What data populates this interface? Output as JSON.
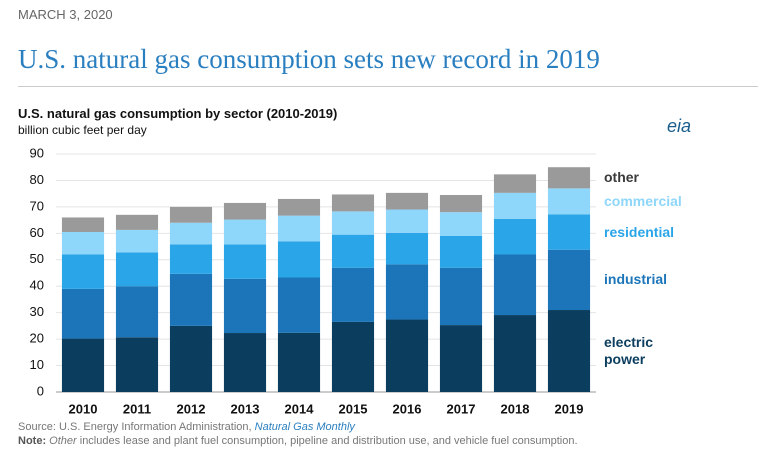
{
  "page": {
    "date": "MARCH 3, 2020",
    "headline": "U.S. natural gas consumption sets new record in 2019",
    "logo": "eia"
  },
  "chart_data": {
    "type": "stacked_bar",
    "title": "U.S. natural gas consumption by sector (2010-2019)",
    "subtitle": "billion cubic feet per day",
    "categories": [
      "2010",
      "2011",
      "2012",
      "2013",
      "2014",
      "2015",
      "2016",
      "2017",
      "2018",
      "2019"
    ],
    "series": [
      {
        "name": "electric power",
        "color": "#0b3d5e",
        "values": [
          20.2,
          20.7,
          25.0,
          22.3,
          22.4,
          26.5,
          27.4,
          25.3,
          29.1,
          31.0
        ]
      },
      {
        "name": "industrial",
        "color": "#1b75b8",
        "values": [
          18.8,
          19.3,
          19.7,
          20.5,
          20.9,
          20.5,
          20.9,
          21.7,
          22.9,
          22.8
        ]
      },
      {
        "name": "residential",
        "color": "#2aa5e8",
        "values": [
          13.0,
          12.8,
          11.1,
          13.0,
          13.7,
          12.5,
          11.9,
          12.0,
          13.5,
          13.4
        ]
      },
      {
        "name": "commercial",
        "color": "#8fd6fb",
        "values": [
          8.5,
          8.5,
          8.2,
          9.4,
          9.7,
          8.8,
          8.8,
          9.0,
          9.8,
          9.8
        ]
      },
      {
        "name": "other",
        "color": "#9a9a9a",
        "values": [
          5.5,
          5.7,
          6.0,
          6.3,
          6.3,
          6.4,
          6.3,
          6.5,
          7.0,
          8.0
        ]
      }
    ],
    "ylim": [
      0,
      90
    ],
    "yticks": [
      0,
      10,
      20,
      30,
      40,
      50,
      60,
      70,
      80,
      90
    ],
    "grid": true,
    "legend": "right-labels",
    "source": {
      "label": "Source:",
      "text": "U.S. Energy Information Administration,",
      "link": "Natural Gas Monthly"
    },
    "note": {
      "label": "Note:",
      "italic": "Other",
      "text": "includes lease and plant fuel consumption, pipeline and distribution use, and vehicle fuel consumption."
    }
  }
}
